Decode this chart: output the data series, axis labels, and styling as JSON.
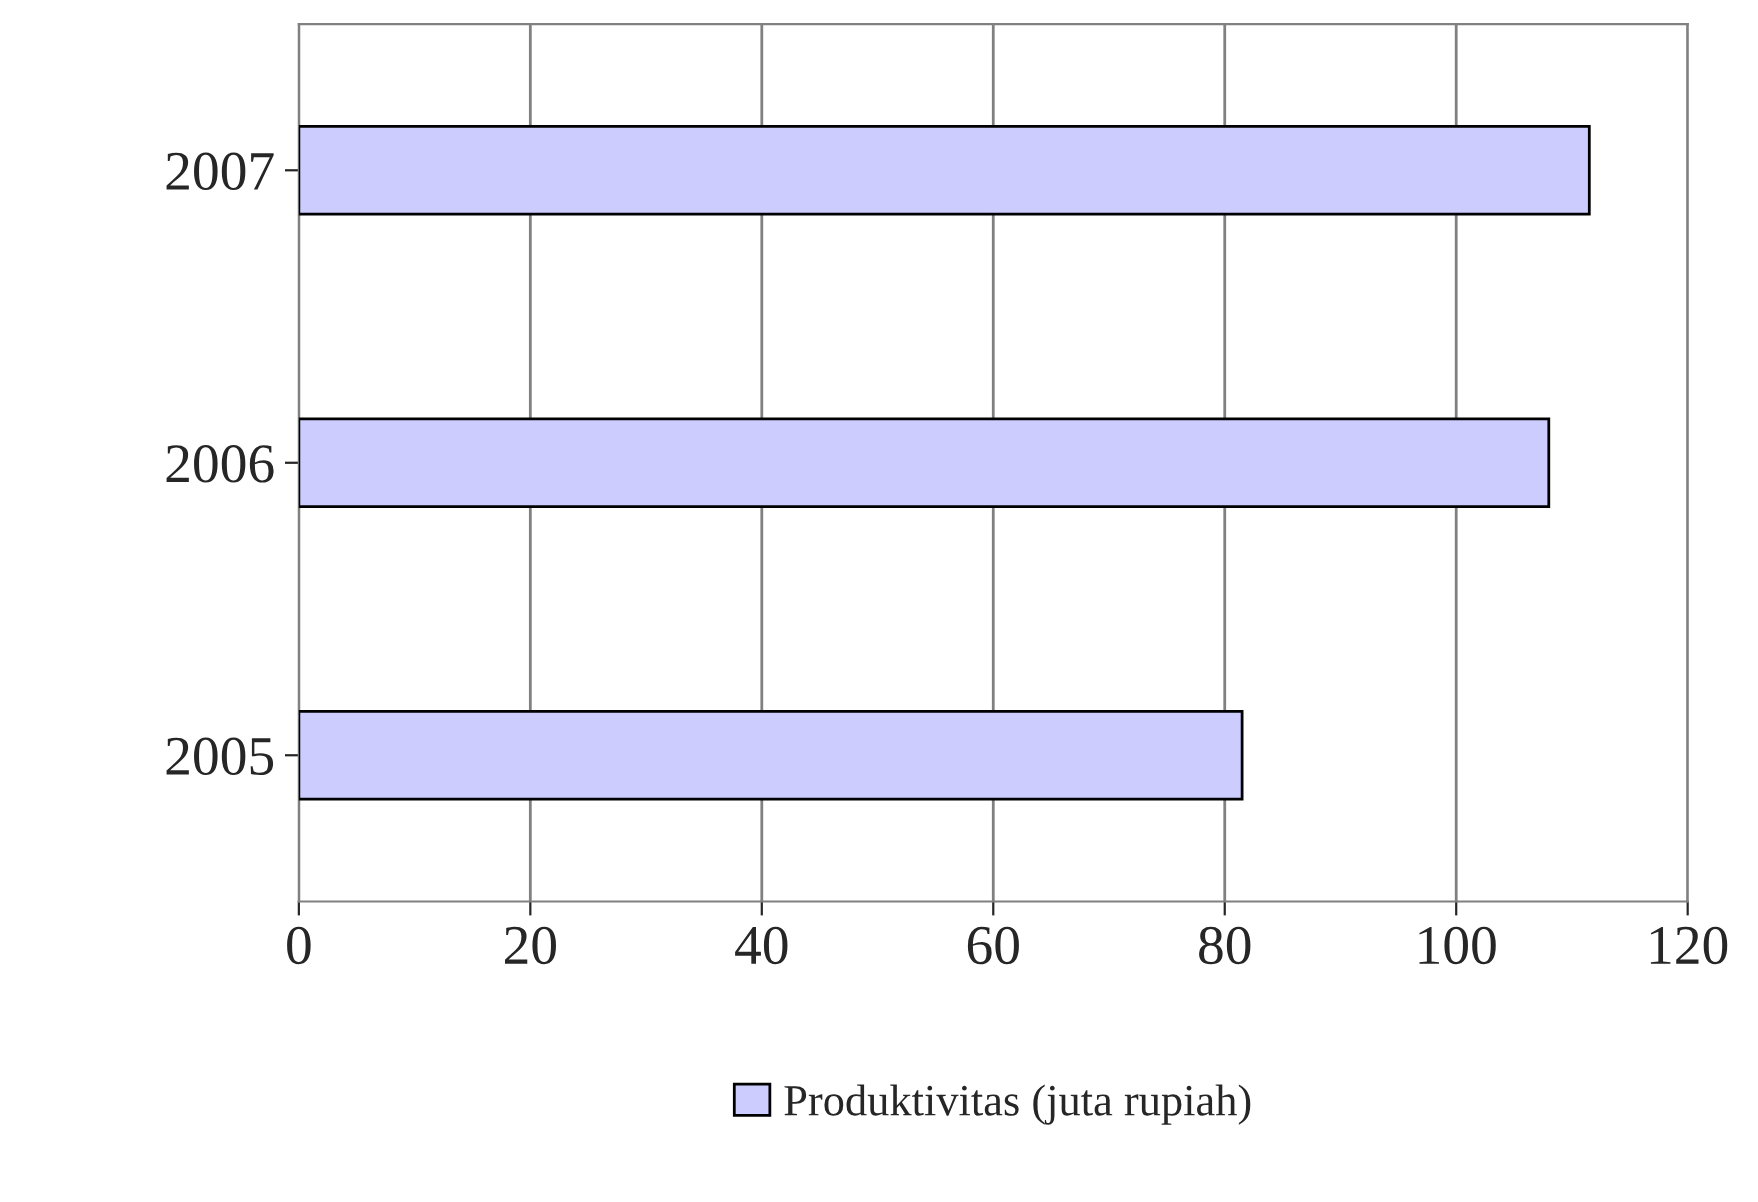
{
  "chart_data": {
    "type": "bar",
    "orientation": "horizontal",
    "categories": [
      "2007",
      "2006",
      "2005"
    ],
    "series": [
      {
        "name": "Produktivitas (juta rupiah)",
        "color": "#ccccff",
        "values": [
          111.5,
          108,
          81.5
        ]
      }
    ],
    "xlim": [
      0,
      120
    ],
    "xticks": [
      0,
      20,
      40,
      60,
      80,
      100,
      120
    ],
    "grid": "x",
    "legend": "bottom"
  }
}
